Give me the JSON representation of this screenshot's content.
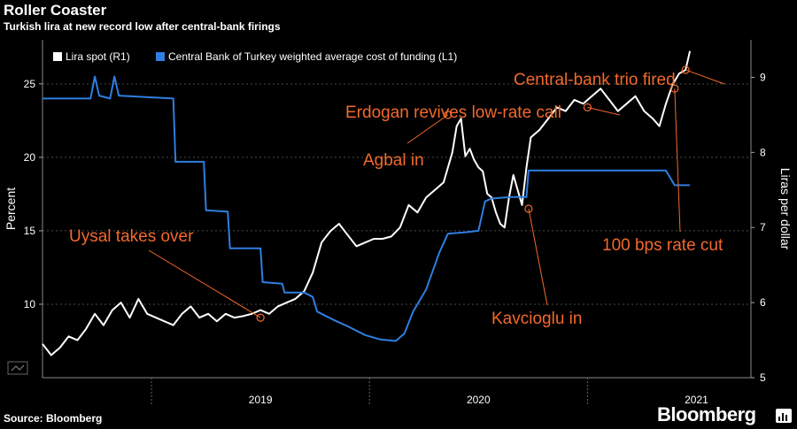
{
  "header": {
    "title": "Roller Coaster",
    "subtitle": "Turkish lira at new record low after central-bank firings"
  },
  "footer": {
    "source": "Source: Bloomberg",
    "brand": "Bloomberg",
    "brand_icon": "bloomberg-terminal-icon"
  },
  "colors": {
    "background": "#000000",
    "lira_line": "#ffffff",
    "funding_line": "#2f7ee0",
    "annotation": "#f2692c",
    "grid": "#4a4a4a"
  },
  "chart_data": {
    "type": "line",
    "title": "Roller Coaster",
    "x_tick_labels": [
      "2019",
      "2020",
      "2021"
    ],
    "x_range": [
      2018.5,
      2021.75
    ],
    "left_axis": {
      "label": "Percent",
      "range": [
        5,
        28
      ],
      "ticks": [
        10,
        15,
        20,
        25
      ]
    },
    "right_axis": {
      "label": "Liras per dollar",
      "range": [
        5,
        9.5
      ],
      "ticks": [
        5,
        6,
        7,
        8,
        9
      ]
    },
    "legend": {
      "placement": "top-left",
      "entries": [
        {
          "name": "Lira spot (R1)",
          "color": "#ffffff"
        },
        {
          "name": "Central Bank of Turkey weighted average cost of funding (L1)",
          "color": "#2f7ee0"
        }
      ]
    },
    "series": [
      {
        "name": "Lira spot (R1)",
        "axis": "right",
        "points": [
          [
            2018.5,
            5.45
          ],
          [
            2018.54,
            5.3
          ],
          [
            2018.58,
            5.4
          ],
          [
            2018.62,
            5.55
          ],
          [
            2018.66,
            5.5
          ],
          [
            2018.7,
            5.65
          ],
          [
            2018.74,
            5.85
          ],
          [
            2018.78,
            5.7
          ],
          [
            2018.82,
            5.9
          ],
          [
            2018.86,
            6.0
          ],
          [
            2018.9,
            5.8
          ],
          [
            2018.94,
            6.05
          ],
          [
            2018.98,
            5.85
          ],
          [
            2019.02,
            5.8
          ],
          [
            2019.06,
            5.75
          ],
          [
            2019.1,
            5.7
          ],
          [
            2019.14,
            5.85
          ],
          [
            2019.18,
            5.95
          ],
          [
            2019.22,
            5.8
          ],
          [
            2019.26,
            5.85
          ],
          [
            2019.3,
            5.75
          ],
          [
            2019.34,
            5.85
          ],
          [
            2019.38,
            5.8
          ],
          [
            2019.42,
            5.82
          ],
          [
            2019.46,
            5.85
          ],
          [
            2019.5,
            5.9
          ],
          [
            2019.54,
            5.85
          ],
          [
            2019.58,
            5.95
          ],
          [
            2019.62,
            6.0
          ],
          [
            2019.66,
            6.05
          ],
          [
            2019.7,
            6.15
          ],
          [
            2019.74,
            6.4
          ],
          [
            2019.78,
            6.8
          ],
          [
            2019.82,
            6.95
          ],
          [
            2019.86,
            7.05
          ],
          [
            2019.9,
            6.9
          ],
          [
            2019.94,
            6.75
          ],
          [
            2019.98,
            6.8
          ],
          [
            2020.02,
            6.85
          ],
          [
            2020.06,
            6.85
          ],
          [
            2020.1,
            6.88
          ],
          [
            2020.14,
            7.0
          ],
          [
            2020.18,
            7.3
          ],
          [
            2020.22,
            7.2
          ],
          [
            2020.26,
            7.4
          ],
          [
            2020.3,
            7.5
          ],
          [
            2020.34,
            7.6
          ],
          [
            2020.38,
            8.0
          ],
          [
            2020.4,
            8.35
          ],
          [
            2020.42,
            8.45
          ],
          [
            2020.44,
            7.95
          ],
          [
            2020.46,
            8.05
          ],
          [
            2020.48,
            7.9
          ],
          [
            2020.5,
            7.8
          ],
          [
            2020.52,
            7.75
          ],
          [
            2020.54,
            7.45
          ],
          [
            2020.56,
            7.4
          ],
          [
            2020.58,
            7.2
          ],
          [
            2020.6,
            7.05
          ],
          [
            2020.62,
            7.0
          ],
          [
            2020.64,
            7.4
          ],
          [
            2020.66,
            7.7
          ],
          [
            2020.68,
            7.5
          ],
          [
            2020.7,
            7.3
          ],
          [
            2020.72,
            7.8
          ],
          [
            2020.74,
            8.2
          ],
          [
            2020.78,
            8.3
          ],
          [
            2020.82,
            8.45
          ],
          [
            2020.86,
            8.6
          ],
          [
            2020.9,
            8.55
          ],
          [
            2020.94,
            8.7
          ],
          [
            2020.98,
            8.65
          ],
          [
            2021.02,
            8.75
          ],
          [
            2021.06,
            8.85
          ],
          [
            2021.1,
            8.7
          ],
          [
            2021.14,
            8.55
          ],
          [
            2021.18,
            8.65
          ],
          [
            2021.22,
            8.75
          ],
          [
            2021.26,
            8.55
          ],
          [
            2021.3,
            8.45
          ],
          [
            2021.33,
            8.35
          ],
          [
            2021.36,
            8.65
          ],
          [
            2021.39,
            8.9
          ],
          [
            2021.42,
            9.05
          ],
          [
            2021.45,
            9.1
          ],
          [
            2021.47,
            9.35
          ]
        ]
      },
      {
        "name": "Central Bank of Turkey weighted average cost of funding (L1)",
        "axis": "left",
        "points": [
          [
            2018.5,
            24.0
          ],
          [
            2018.72,
            24.0
          ],
          [
            2018.74,
            25.5
          ],
          [
            2018.76,
            24.2
          ],
          [
            2018.81,
            24.0
          ],
          [
            2018.83,
            25.5
          ],
          [
            2018.85,
            24.2
          ],
          [
            2019.1,
            24.0
          ],
          [
            2019.11,
            19.7
          ],
          [
            2019.24,
            19.7
          ],
          [
            2019.25,
            16.4
          ],
          [
            2019.35,
            16.3
          ],
          [
            2019.36,
            13.8
          ],
          [
            2019.5,
            13.8
          ],
          [
            2019.51,
            11.5
          ],
          [
            2019.6,
            11.4
          ],
          [
            2019.61,
            10.8
          ],
          [
            2019.7,
            10.8
          ],
          [
            2019.74,
            10.5
          ],
          [
            2019.76,
            9.5
          ],
          [
            2019.84,
            8.9
          ],
          [
            2019.9,
            8.5
          ],
          [
            2019.98,
            7.9
          ],
          [
            2020.05,
            7.6
          ],
          [
            2020.12,
            7.5
          ],
          [
            2020.16,
            8.0
          ],
          [
            2020.2,
            9.5
          ],
          [
            2020.26,
            11.0
          ],
          [
            2020.32,
            13.5
          ],
          [
            2020.36,
            14.8
          ],
          [
            2020.44,
            14.9
          ],
          [
            2020.5,
            15.0
          ],
          [
            2020.53,
            17.0
          ],
          [
            2020.56,
            17.2
          ],
          [
            2020.65,
            17.3
          ],
          [
            2020.72,
            17.3
          ],
          [
            2020.73,
            19.1
          ],
          [
            2021.36,
            19.1
          ],
          [
            2021.4,
            18.1
          ],
          [
            2021.47,
            18.1
          ]
        ]
      }
    ],
    "annotations": [
      {
        "text": "Uysal takes over",
        "x": 2019.5,
        "y": 5.8
      },
      {
        "text": "Agbal in",
        "x": 2020.36,
        "y": 8.5
      },
      {
        "text": "Erdogan revives low-rate call",
        "x": 2021.0,
        "y": 8.6
      },
      {
        "text": "Kavcioglu in",
        "x": 2020.73,
        "y": 7.25
      },
      {
        "text": "100 bps rate cut",
        "x": 2021.4,
        "y": 8.85
      },
      {
        "text": "Central-bank trio fired",
        "x": 2021.45,
        "y": 9.1
      }
    ]
  }
}
